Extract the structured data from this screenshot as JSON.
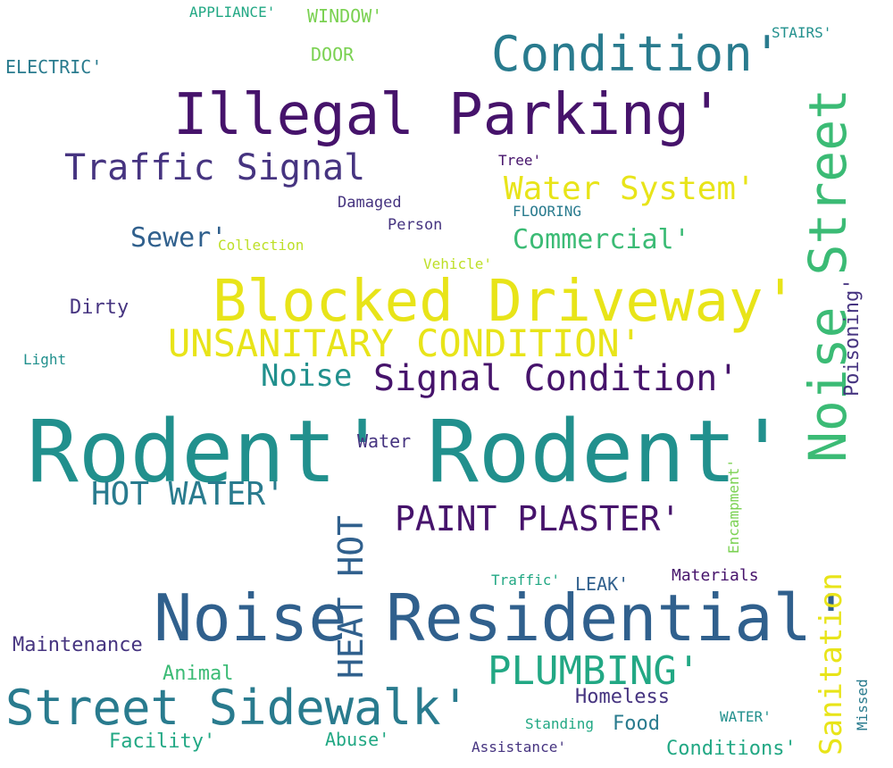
{
  "colors": {
    "background": "#ffffff",
    "viridis_dark_purple": "#46136b",
    "viridis_indigo": "#463480",
    "viridis_blue": "#30608d",
    "viridis_teal_blue": "#297b8e",
    "viridis_teal": "#21908d",
    "viridis_green_teal": "#22a884",
    "viridis_green": "#3bbb75",
    "viridis_lime": "#7ad151",
    "viridis_yellow_green": "#bddf26",
    "viridis_yellow": "#e8e419"
  },
  "words": {
    "rodent_1": "Rodent'",
    "rodent_2": "Rodent'",
    "noise_residential": "Noise Residential'",
    "blocked_driveway": "Blocked Driveway'",
    "illegal_parking": "Illegal Parking'",
    "noise_street": "Noise Street",
    "condition": "Condition'",
    "street_sidewalk": "Street Sidewalk'",
    "unsanitary_condition": "UNSANITARY CONDITION'",
    "signal_condition": "Signal Condition'",
    "traffic_signal": "Traffic Signal",
    "plumbing": "PLUMBING'",
    "paint_plaster": "PAINT PLASTER'",
    "heat_hot": "HEAT HOT",
    "hot_water": "HOT WATER'",
    "water_system": "Water System'",
    "sanitation": "Sanitation",
    "commercial": "Commercial'",
    "noise": "Noise",
    "sewer": "Sewer'",
    "poisoning": "Poisoning'",
    "maintenance": "Maintenance",
    "facility": "Facility'",
    "animal": "Animal",
    "homeless": "Homeless",
    "conditions": "Conditions'",
    "abuse": "Abuse'",
    "food": "Food",
    "leak": "LEAK'",
    "dirty": "Dirty",
    "window": "WINDOW'",
    "electric": "ELECTRIC'",
    "door": "DOOR",
    "water": "Water",
    "encampment": "Encampment'",
    "materials": "Materials",
    "traffic": "Traffic'",
    "damaged": "Damaged",
    "appliance": "APPLIANCE'",
    "stairs": "STAIRS'",
    "tree": "Tree'",
    "person": "Person",
    "flooring": "FLOORING",
    "collection": "Collection",
    "vehicle": "Vehicle'",
    "light": "Light",
    "standing": "Standing",
    "water_caps": "WATER'",
    "assistance": "Assistance'",
    "missed": "Missed"
  }
}
